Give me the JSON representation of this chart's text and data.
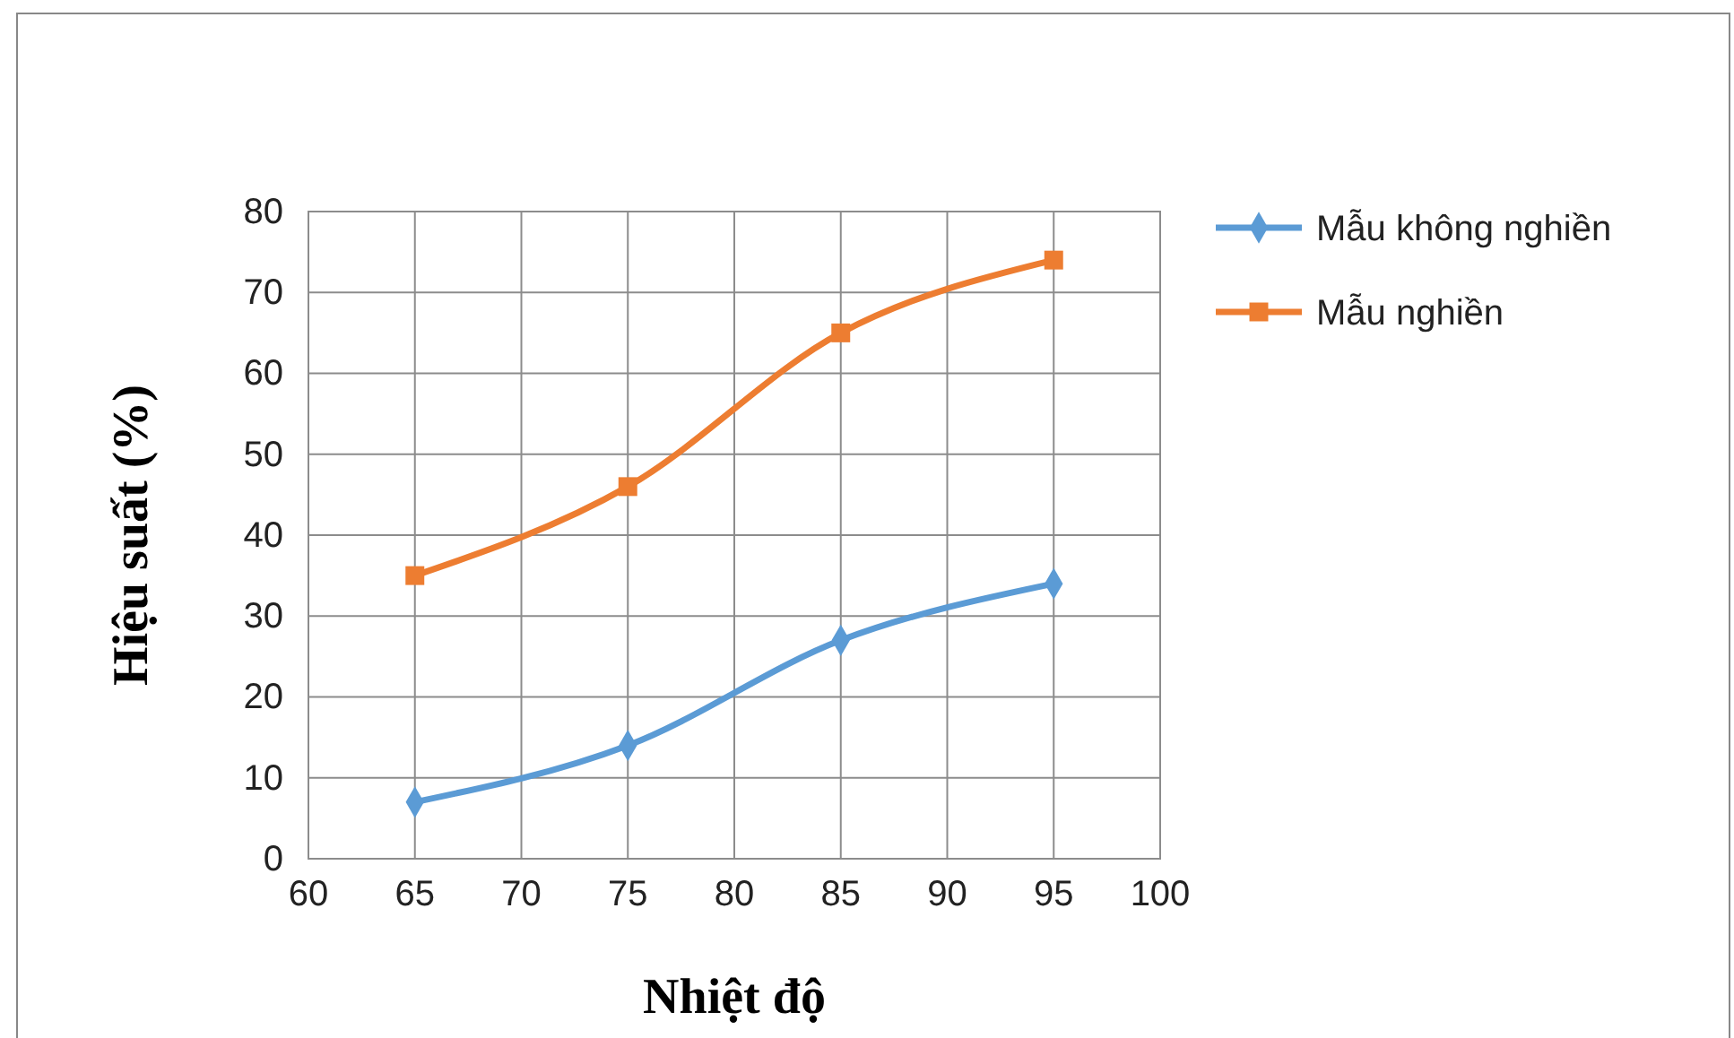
{
  "chart_data": {
    "type": "line",
    "xlabel": "Nhiệt độ",
    "ylabel": "Hiệu suất (%)",
    "x": [
      65,
      75,
      85,
      95
    ],
    "series": [
      {
        "name": "Mẫu không nghiền",
        "color": "#5b9bd5",
        "values": [
          7,
          14,
          27,
          34
        ],
        "marker": "diamond"
      },
      {
        "name": "Mẫu nghiền",
        "color": "#ed7d31",
        "values": [
          35,
          46,
          65,
          74
        ],
        "marker": "square"
      }
    ],
    "xlim": [
      60,
      100
    ],
    "xticks": [
      60,
      65,
      70,
      75,
      80,
      85,
      90,
      95,
      100
    ],
    "ylim": [
      0,
      80
    ],
    "yticks": [
      0,
      10,
      20,
      30,
      40,
      50,
      60,
      70,
      80
    ],
    "grid": true,
    "legend": "right"
  }
}
